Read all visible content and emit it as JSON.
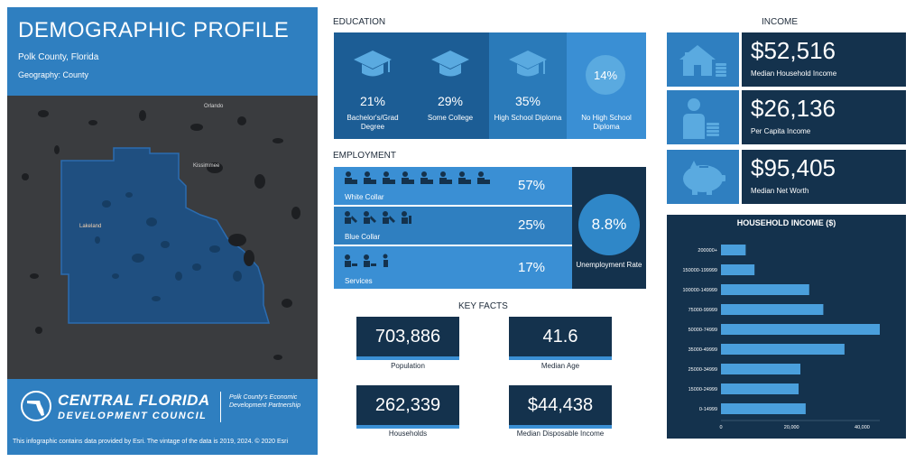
{
  "header": {
    "title": "DEMOGRAPHIC PROFILE",
    "county": "Polk County, Florida",
    "geography": "Geography: County"
  },
  "map": {
    "labels": {
      "orlando": "Orlando",
      "kissimmee": "Kissimmee",
      "lakeland": "Lakeland"
    },
    "colors": {
      "background": "#3a3c3f",
      "county_fill": "#1f4f80",
      "county_stroke": "#2b6cb0",
      "water": "#1d1f22"
    }
  },
  "footer": {
    "org_name": "CENTRAL FLORIDA",
    "org_sub": "DEVELOPMENT COUNCIL",
    "partner": "Polk County's Economic Development Partnership",
    "source": "This infographic contains data provided by Esri. The vintage of the data is 2019, 2024. © 2020 Esri"
  },
  "education": {
    "heading": "EDUCATION",
    "items": [
      {
        "pct": "21%",
        "label": "Bachelor's/Grad Degree",
        "icon": "graduation-cap-icon"
      },
      {
        "pct": "29%",
        "label": "Some College",
        "icon": "graduation-cap-icon"
      },
      {
        "pct": "35%",
        "label": "High School Diploma",
        "icon": "graduate-tassel-cap-icon"
      },
      {
        "pct": "14%",
        "label": "No High School Diploma",
        "icon": "circle-badge"
      }
    ]
  },
  "employment": {
    "heading": "EMPLOYMENT",
    "rows": [
      {
        "label": "White Collar",
        "pct": "57%",
        "icon": "office-worker-icon"
      },
      {
        "label": "Blue Collar",
        "pct": "25%",
        "icon": "manual-worker-icon"
      },
      {
        "label": "Services",
        "pct": "17%",
        "icon": "service-worker-icon"
      }
    ],
    "unemployment": {
      "value": "8.8%",
      "label": "Unemployment Rate"
    }
  },
  "key_facts": {
    "heading": "KEY FACTS",
    "items": [
      {
        "value": "703,886",
        "label": "Population"
      },
      {
        "value": "41.6",
        "label": "Median Age"
      },
      {
        "value": "262,339",
        "label": "Households"
      },
      {
        "value": "$44,438",
        "label": "Median Disposable Income"
      }
    ]
  },
  "income": {
    "heading": "INCOME",
    "items": [
      {
        "value": "$52,516",
        "label": "Median Household Income",
        "icon": "house-coins-icon"
      },
      {
        "value": "$26,136",
        "label": "Per Capita Income",
        "icon": "person-coins-icon"
      },
      {
        "value": "$95,405",
        "label": "Median Net Worth",
        "icon": "piggy-bank-icon"
      }
    ]
  },
  "colors": {
    "brand_blue": "#2f7fc0",
    "navy": "#14324d",
    "mid_blue": "#1c5d95",
    "light_blue": "#5aaae0",
    "bar_blue": "#4a9fdc"
  },
  "chart_data": {
    "type": "bar",
    "orientation": "horizontal",
    "title": "HOUSEHOLD INCOME ($)",
    "categories": [
      "200000+",
      "150000-199999",
      "100000-149999",
      "75000-99999",
      "50000-74999",
      "35000-49999",
      "25000-34999",
      "15000-24999",
      "0-14999"
    ],
    "values": [
      7000,
      9500,
      25000,
      29000,
      45000,
      35000,
      22500,
      22000,
      24000
    ],
    "xlim": [
      0,
      45000
    ],
    "xticks": [
      "0",
      "20,000",
      "40,000"
    ],
    "xtick_values": [
      0,
      20000,
      40000
    ],
    "grid": false,
    "bar_color": "#4a9fdc"
  }
}
